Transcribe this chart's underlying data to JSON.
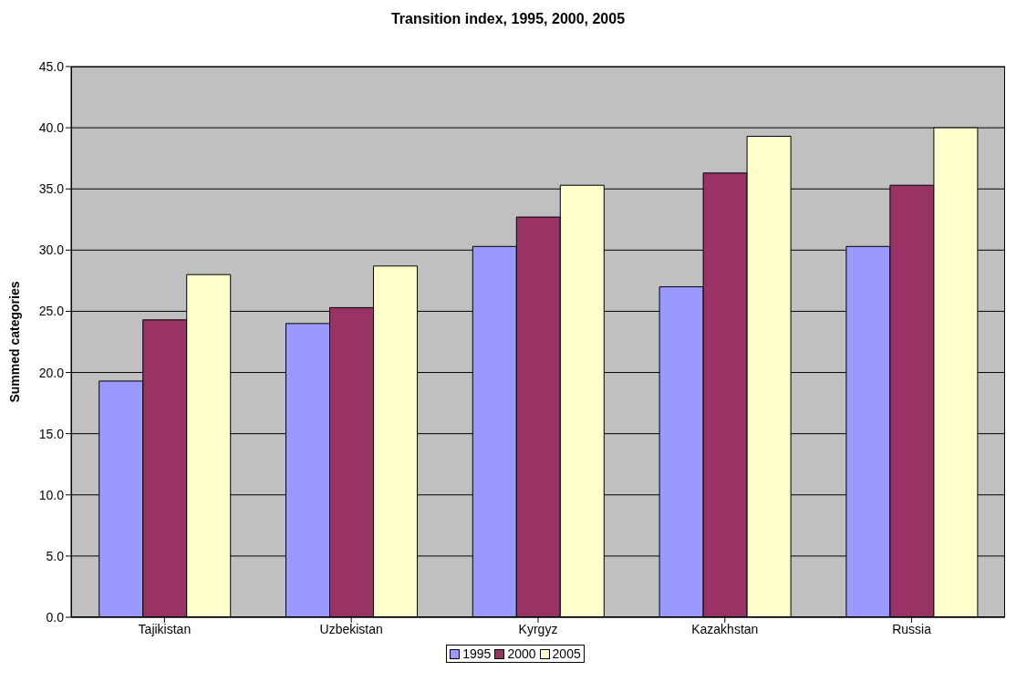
{
  "chart_data": {
    "type": "bar",
    "title": "Transition index, 1995, 2000, 2005",
    "ylabel": "Summed categories",
    "categories": [
      "Tajikistan",
      "Uzbekistan",
      "Kyrgyz",
      "Kazakhstan",
      "Russia"
    ],
    "series": [
      {
        "name": "1995",
        "color": "#9999ff",
        "values": [
          19.3,
          24.0,
          30.3,
          27.0,
          30.3
        ]
      },
      {
        "name": "2000",
        "color": "#993366",
        "values": [
          24.3,
          25.3,
          32.7,
          36.3,
          35.3
        ]
      },
      {
        "name": "2005",
        "color": "#ffffcc",
        "values": [
          28.0,
          28.7,
          35.3,
          39.3,
          40.0
        ]
      }
    ],
    "ylim": [
      0,
      45
    ],
    "yticks": [
      {
        "value": 0,
        "label": "0.0"
      },
      {
        "value": 5,
        "label": "5.0"
      },
      {
        "value": 10,
        "label": "10.0"
      },
      {
        "value": 15,
        "label": "15.0"
      },
      {
        "value": 20,
        "label": "20.0"
      },
      {
        "value": 25,
        "label": "25.0"
      },
      {
        "value": 30,
        "label": "30.0"
      },
      {
        "value": 35,
        "label": "35.0"
      },
      {
        "value": 40,
        "label": "40.0"
      },
      {
        "value": 45,
        "label": "45.0"
      }
    ],
    "grid": "y",
    "legend": "bottom"
  }
}
